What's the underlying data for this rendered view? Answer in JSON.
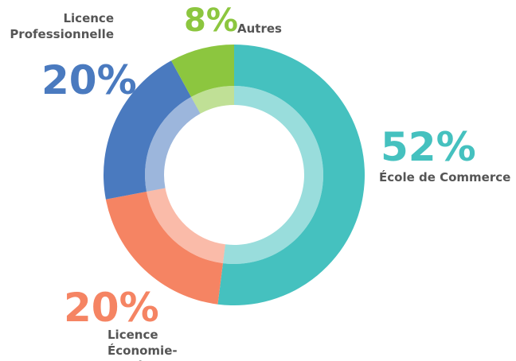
{
  "chart_data": {
    "type": "donut",
    "categories": [
      "École de Commerce",
      "Licence Économie-Gestion",
      "Licence Professionnelle",
      "Autres"
    ],
    "values": [
      52,
      20,
      20,
      8
    ],
    "value_labels": [
      "52%",
      "20%",
      "20%",
      "8%"
    ],
    "colors": [
      "#45c1bf",
      "#f58463",
      "#4a7abf",
      "#8cc63f"
    ]
  }
}
